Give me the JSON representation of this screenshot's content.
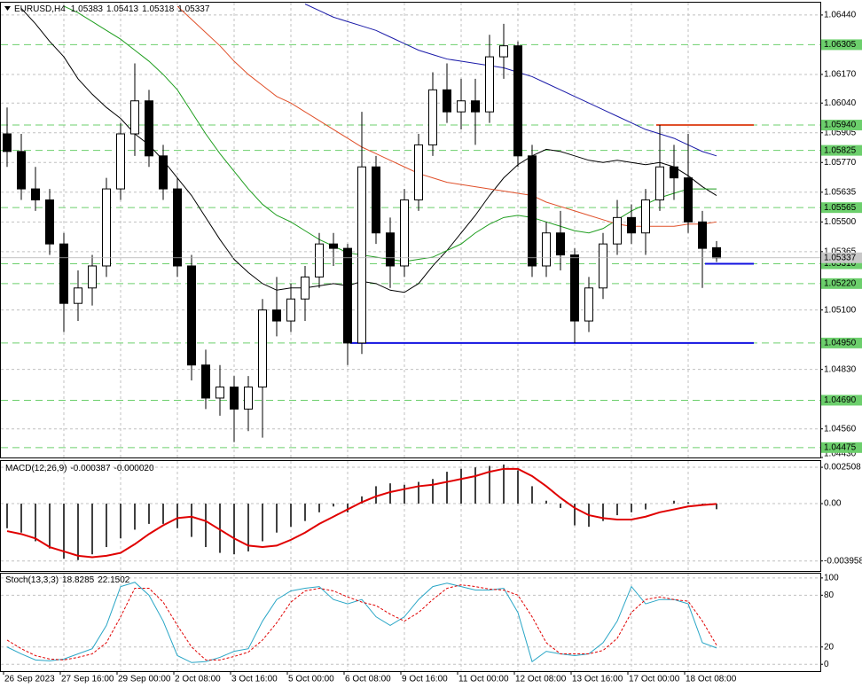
{
  "chart_data": [
    {
      "type": "candlestick",
      "title": "EURUSD,H4",
      "categories": [
        "26 Sep 2023",
        null,
        null,
        null,
        "27 Sep 16:00",
        null,
        null,
        null,
        "29 Sep 00:00",
        null,
        null,
        null,
        "2 Oct 08:00",
        null,
        null,
        null,
        "3 Oct 16:00",
        null,
        null,
        null,
        "5 Oct 00:00",
        null,
        null,
        null,
        "6 Oct 08:00",
        null,
        null,
        null,
        "9 Oct 16:00",
        null,
        null,
        null,
        "11 Oct 00:00",
        null,
        null,
        null,
        "12 Oct 08:00",
        null,
        null,
        null,
        "13 Oct 16:00",
        null,
        null,
        null,
        "17 Oct 00:00",
        null,
        null,
        null,
        "18 Oct 08:00",
        null,
        null
      ],
      "open": [
        1.059,
        1.0582,
        1.0565,
        1.056,
        1.054,
        1.0513,
        1.052,
        1.053,
        1.0565,
        1.059,
        1.0605,
        1.058,
        1.0565,
        1.053,
        1.0485,
        1.047,
        1.0475,
        1.0465,
        1.0475,
        1.051,
        1.0505,
        1.0515,
        1.0525,
        1.054,
        1.0538,
        1.0495,
        1.0575,
        1.0545,
        1.053,
        1.056,
        1.0585,
        1.061,
        1.06,
        1.0605,
        1.06,
        1.0625,
        1.063,
        1.058,
        1.053,
        1.0545,
        1.0535,
        1.0505,
        1.052,
        1.054,
        1.0552,
        1.0545,
        1.056,
        1.0575,
        1.057,
        1.055,
        1.05383
      ],
      "high": [
        1.0602,
        1.059,
        1.0575,
        1.0565,
        1.0545,
        1.0528,
        1.0535,
        1.057,
        1.0595,
        1.0622,
        1.061,
        1.0585,
        1.057,
        1.0535,
        1.0492,
        1.0485,
        1.048,
        1.048,
        1.0515,
        1.0525,
        1.0522,
        1.053,
        1.0545,
        1.0545,
        1.054,
        1.06,
        1.058,
        1.0552,
        1.0565,
        1.059,
        1.0618,
        1.0622,
        1.0615,
        1.0615,
        1.0635,
        1.064,
        1.0632,
        1.0585,
        1.055,
        1.0555,
        1.0538,
        1.0525,
        1.0545,
        1.056,
        1.0558,
        1.0565,
        1.0594,
        1.0585,
        1.059,
        1.0555,
        1.05413
      ],
      "low": [
        1.0575,
        1.056,
        1.0555,
        1.0535,
        1.05,
        1.0505,
        1.0512,
        1.0525,
        1.056,
        1.058,
        1.0575,
        1.056,
        1.0525,
        1.0478,
        1.0465,
        1.0462,
        1.045,
        1.0455,
        1.0452,
        1.0498,
        1.05,
        1.0505,
        1.052,
        1.053,
        1.0485,
        1.049,
        1.054,
        1.052,
        1.0525,
        1.0555,
        1.058,
        1.0595,
        1.0592,
        1.0585,
        1.0595,
        1.0615,
        1.0575,
        1.0525,
        1.0525,
        1.0528,
        1.0495,
        1.05,
        1.0515,
        1.0535,
        1.054,
        1.0535,
        1.0555,
        1.056,
        1.0545,
        1.052,
        1.05318
      ],
      "close": [
        1.0582,
        1.0565,
        1.056,
        1.054,
        1.0513,
        1.052,
        1.053,
        1.0565,
        1.059,
        1.0605,
        1.058,
        1.0565,
        1.053,
        1.0485,
        1.047,
        1.0475,
        1.0465,
        1.0475,
        1.051,
        1.0505,
        1.0515,
        1.0525,
        1.054,
        1.0538,
        1.0495,
        1.0575,
        1.0545,
        1.053,
        1.056,
        1.0585,
        1.061,
        1.06,
        1.0605,
        1.06,
        1.0625,
        1.063,
        1.058,
        1.053,
        1.0545,
        1.0535,
        1.0505,
        1.052,
        1.054,
        1.0552,
        1.0545,
        1.056,
        1.0575,
        1.057,
        1.055,
        1.0538,
        1.05337
      ],
      "ylim": [
        1.0443,
        1.06496
      ],
      "yticks": [
        {
          "value": 1.0644,
          "label": "1.06440"
        },
        {
          "value": 1.0617,
          "label": "1.06170"
        },
        {
          "value": 1.0604,
          "label": "1.06040"
        },
        1.05905,
        {
          "value": 1.0577,
          "label": "1.05770"
        },
        1.05635,
        {
          "value": 1.055,
          "label": "1.05500"
        },
        1.05365,
        {
          "value": 1.051,
          "label": "1.05100"
        },
        {
          "value": 1.0483,
          "label": "1.04830"
        },
        {
          "value": 1.0456,
          "label": "1.04560"
        },
        {
          "value": 1.0443,
          "label": "1.04430"
        }
      ],
      "levels": [
        1.06305,
        {
          "value": 1.0594,
          "label": "1.05940"
        },
        1.05825,
        1.05565,
        {
          "value": 1.0531,
          "label": "1.05310"
        },
        {
          "value": 1.0522,
          "label": "1.05220"
        },
        {
          "value": 1.0495,
          "label": "1.04950"
        },
        {
          "value": 1.0469,
          "label": "1.04690"
        },
        1.04475
      ],
      "level_color": "#6ccf6c",
      "grid": true,
      "hlines": [
        {
          "value": 1.0594,
          "color": "#e0502a"
        },
        {
          "value": 1.0495,
          "color": "#1010e0"
        },
        {
          "value": 1.0531,
          "color": "#1010e0"
        }
      ],
      "series": [
        {
          "color": "#000000",
          "values": [
            null,
            1.0647,
            1.064,
            1.0632,
            1.0625,
            1.0615,
            1.0608,
            1.0602,
            1.0597,
            1.059,
            1.0585,
            1.0578,
            1.057,
            1.0562,
            1.0552,
            1.0542,
            1.0533,
            1.0527,
            1.0522,
            1.0519,
            1.052,
            1.052,
            1.0521,
            1.0522,
            1.0521,
            1.0523,
            1.0522,
            1.0519,
            1.0518,
            1.0522,
            1.053,
            1.0537,
            1.0545,
            1.0553,
            1.0562,
            1.057,
            1.0576,
            1.058,
            1.0583,
            1.0582,
            1.058,
            1.0578,
            1.0577,
            1.0578,
            1.0577,
            1.0576,
            1.0577,
            1.0575,
            1.0571,
            1.0566,
            1.0562
          ]
        },
        {
          "color": "#1f9e1f",
          "values": [
            null,
            null,
            null,
            null,
            1.0648,
            1.0645,
            1.0641,
            1.0637,
            1.0633,
            1.0628,
            1.0623,
            1.0617,
            1.061,
            1.06,
            1.059,
            1.0581,
            1.0573,
            1.0565,
            1.0558,
            1.0553,
            1.055,
            1.0546,
            1.0542,
            1.0539,
            1.0536,
            1.0535,
            1.0534,
            1.0533,
            1.0532,
            1.0533,
            1.0534,
            1.0537,
            1.054,
            1.0545,
            1.0549,
            1.0552,
            1.0553,
            1.0552,
            1.055,
            1.0548,
            1.0546,
            1.0545,
            1.0547,
            1.0551,
            1.0555,
            1.0558,
            1.0561,
            1.0563,
            1.0565,
            1.0565,
            1.0565
          ]
        },
        {
          "color": "#e0502a",
          "values": [
            null,
            null,
            null,
            null,
            null,
            null,
            null,
            null,
            null,
            null,
            null,
            null,
            1.0648,
            1.0642,
            1.0636,
            1.063,
            1.0623,
            1.0617,
            1.0612,
            1.0607,
            1.0604,
            1.06,
            1.0596,
            1.0592,
            1.0588,
            1.0584,
            1.0581,
            1.0578,
            1.0575,
            1.0572,
            1.057,
            1.0568,
            1.0567,
            1.0566,
            1.0565,
            1.0564,
            1.0563,
            1.0562,
            1.0559,
            1.0557,
            1.0555,
            1.0553,
            1.0551,
            1.0549,
            1.0548,
            1.0548,
            1.0548,
            1.0548,
            1.0549,
            1.0549,
            1.055
          ]
        },
        {
          "color": "#1a1aa8",
          "values": [
            null,
            null,
            null,
            null,
            null,
            null,
            null,
            null,
            null,
            null,
            null,
            null,
            null,
            null,
            null,
            null,
            null,
            null,
            null,
            null,
            null,
            1.0649,
            1.0646,
            1.0643,
            1.0641,
            1.0639,
            1.0637,
            1.0634,
            1.0631,
            1.0628,
            1.0626,
            1.0624,
            1.0623,
            1.0622,
            1.0621,
            1.062,
            1.0618,
            1.0616,
            1.0613,
            1.061,
            1.0607,
            1.0604,
            1.0601,
            1.0598,
            1.0595,
            1.0592,
            1.059,
            1.0588,
            1.0585,
            1.0582,
            1.058
          ]
        }
      ]
    },
    {
      "type": "bar",
      "title": "MACD(12,26,9)",
      "color": "#000000",
      "values": [
        -0.0017,
        -0.002,
        -0.0026,
        -0.0031,
        -0.0038,
        -0.0039,
        -0.0035,
        -0.003,
        -0.0024,
        -0.0018,
        -0.0014,
        -0.0014,
        -0.0017,
        -0.0023,
        -0.003,
        -0.0034,
        -0.0035,
        -0.0033,
        -0.0026,
        -0.002,
        -0.0016,
        -0.0012,
        -0.0006,
        -0.0002,
        -0.0006,
        0.0005,
        0.0012,
        0.0014,
        0.0013,
        0.0015,
        0.0017,
        0.0022,
        0.0024,
        0.0025,
        0.0026,
        0.0027,
        0.0023,
        0.0012,
        0.0002,
        -0.0003,
        -0.0015,
        -0.0016,
        -0.0012,
        -0.0008,
        -0.0006,
        -0.0004,
        0,
        0.0002,
        0.0001,
        -0.0001,
        -0.000387
      ],
      "signal": {
        "color": "#e00000",
        "values": [
          -0.0019,
          -0.0021,
          -0.0024,
          -0.003,
          -0.0033,
          -0.0036,
          -0.0037,
          -0.0036,
          -0.0034,
          -0.0028,
          -0.0021,
          -0.0015,
          -0.001,
          -0.0009,
          -0.0012,
          -0.0018,
          -0.0024,
          -0.0029,
          -0.003,
          -0.0029,
          -0.0025,
          -0.002,
          -0.0014,
          -0.0009,
          -0.0004,
          0.0001,
          0.0005,
          0.0008,
          0.001,
          0.0012,
          0.0013,
          0.0015,
          0.0017,
          0.0019,
          0.0022,
          0.0024,
          0.0024,
          0.0019,
          0.0012,
          0.0004,
          -0.0003,
          -0.0008,
          -0.001,
          -0.0011,
          -0.0011,
          -0.0009,
          -0.0006,
          -0.0004,
          -0.0002,
          -0.0001,
          -2e-05
        ],
        "value_labels": [
          null,
          null,
          null,
          null,
          null,
          null,
          null,
          null,
          null,
          null,
          null,
          null,
          null,
          null,
          null,
          null,
          null,
          null,
          null,
          null,
          null,
          null,
          null,
          null,
          null,
          null,
          null,
          null,
          null,
          null,
          null,
          null,
          null,
          null,
          null,
          null,
          null,
          null,
          null,
          null,
          null,
          null,
          null,
          null,
          null,
          null,
          null,
          null,
          null,
          null,
          "-0.000020"
        ]
      },
      "ylim": [
        -0.00465,
        0.00294
      ],
      "yticks": [
        0.002508,
        {
          "value": 0,
          "label": "0.00"
        },
        -0.003958
      ]
    },
    {
      "type": "line",
      "title": "Stoch(13,3,3)",
      "series": [
        {
          "color": "#2aa6c6",
          "dashed": false,
          "values": [
            20,
            12,
            5,
            4,
            6,
            12,
            18,
            45,
            90,
            95,
            80,
            50,
            10,
            2,
            3,
            8,
            15,
            18,
            50,
            75,
            85,
            88,
            90,
            75,
            70,
            75,
            55,
            45,
            55,
            75,
            90,
            94,
            90,
            86,
            86,
            88,
            60,
            3,
            15,
            12,
            10,
            12,
            25,
            50,
            90,
            70,
            75,
            75,
            70,
            25,
            18.8285
          ]
        },
        {
          "color": "#e00000",
          "dashed": true,
          "values": [
            28,
            18,
            10,
            6,
            5,
            8,
            12,
            25,
            55,
            88,
            88,
            72,
            45,
            20,
            5,
            5,
            9,
            14,
            28,
            48,
            72,
            85,
            88,
            85,
            78,
            72,
            68,
            58,
            50,
            60,
            75,
            88,
            92,
            90,
            87,
            86,
            80,
            55,
            25,
            12,
            12,
            12,
            16,
            30,
            60,
            75,
            78,
            75,
            73,
            50,
            22.1502
          ]
        }
      ],
      "ylim": [
        -8,
        105
      ],
      "yticks": [
        100,
        80,
        20,
        0
      ]
    }
  ]
}
